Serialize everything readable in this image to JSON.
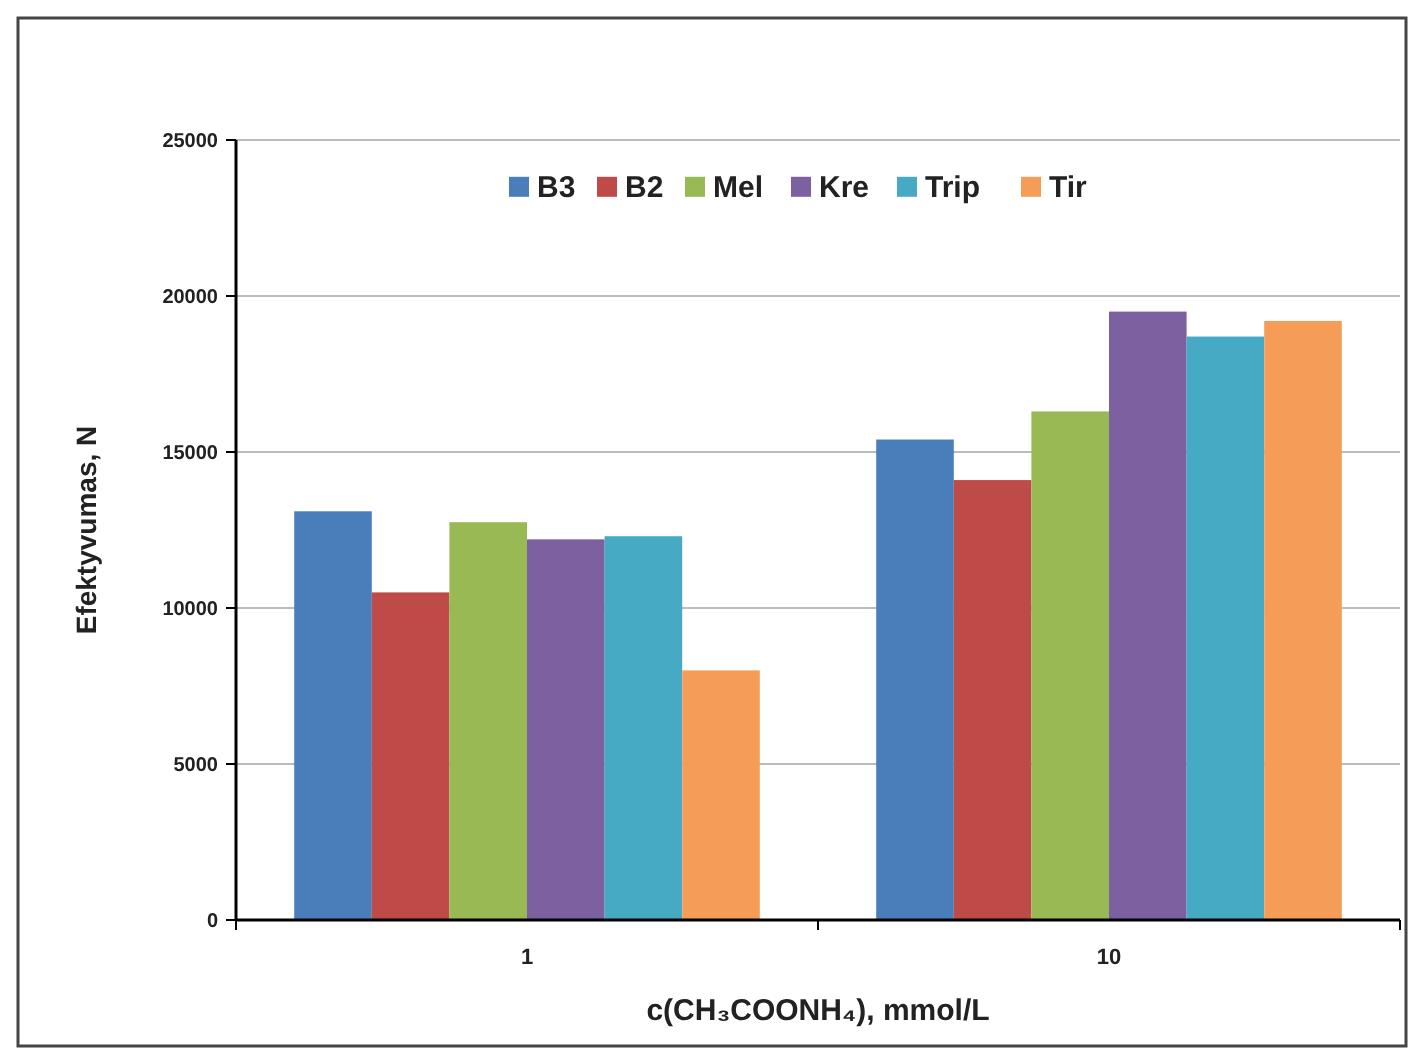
{
  "chart_data": {
    "type": "bar",
    "xlabel": "c(CH₃COONH₄), mmol/L",
    "ylabel": "Efektyvumas, N",
    "categories": [
      "1",
      "10"
    ],
    "series": [
      {
        "name": "B3",
        "color": "#4a7ebb",
        "values": [
          13100,
          15400
        ]
      },
      {
        "name": "B2",
        "color": "#be4b48",
        "values": [
          10500,
          14100
        ]
      },
      {
        "name": "Mel",
        "color": "#98b954",
        "values": [
          12750,
          16300
        ]
      },
      {
        "name": "Kre",
        "color": "#7d60a0",
        "values": [
          12200,
          19500
        ]
      },
      {
        "name": "Trip",
        "color": "#46aac5",
        "values": [
          12300,
          18700
        ]
      },
      {
        "name": "Tir",
        "color": "#f59d56",
        "values": [
          8000,
          19200
        ]
      }
    ],
    "ylim": [
      0,
      25000
    ],
    "yticks": [
      0,
      5000,
      10000,
      15000,
      20000,
      25000
    ],
    "grid": "y",
    "legend": "top"
  }
}
